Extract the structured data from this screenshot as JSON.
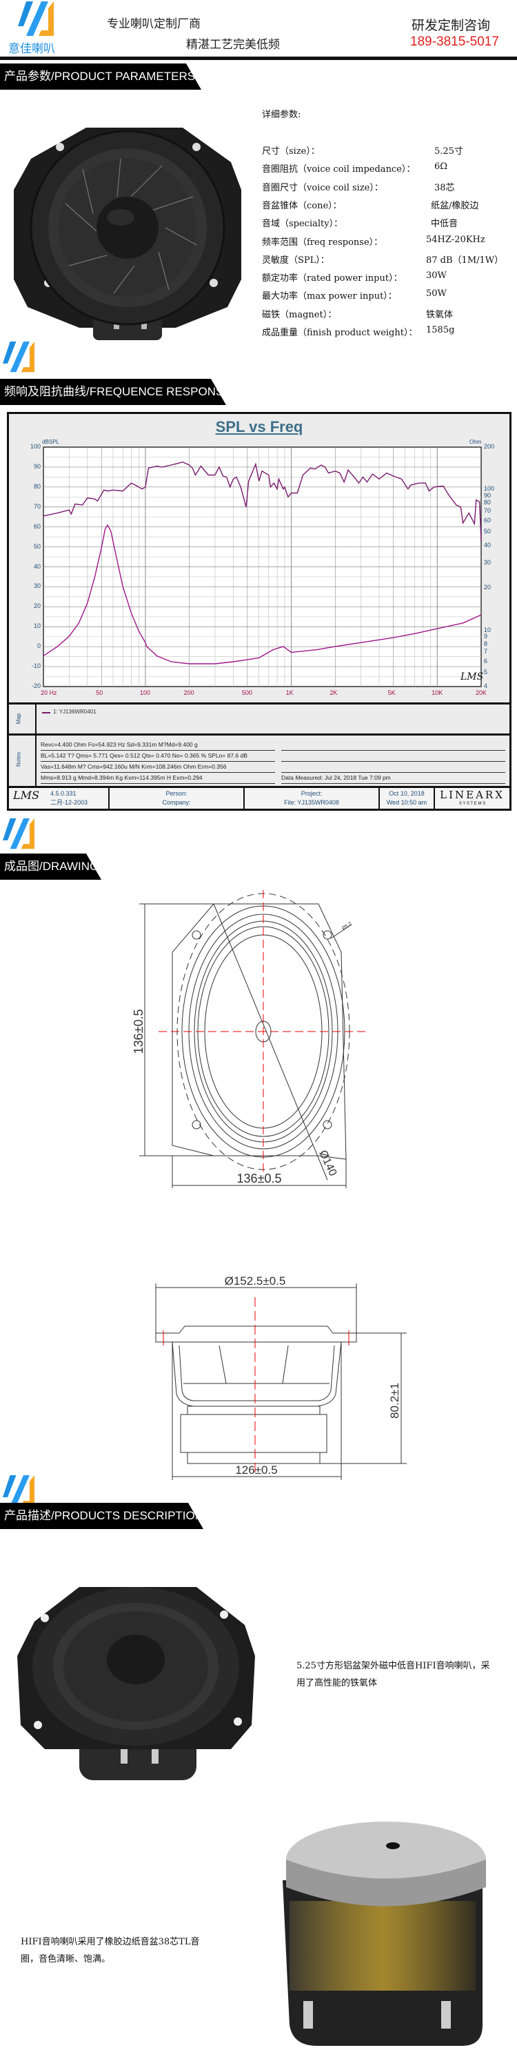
{
  "header": {
    "brand": "意佳喇叭",
    "slogan_1": "专业喇叭定制厂商",
    "slogan_2": "精湛工艺完美低频",
    "contact_title": "研发定制咨询",
    "phone": "189-3815-5017",
    "colors": {
      "phone": "#e0201c",
      "logo_blue": "#1e8fe0",
      "logo_orange": "#f5a623"
    }
  },
  "sections": {
    "parameters": "产品参数/PRODUCT  PARAMETERS",
    "frequency": "频响及阻抗曲线/FREQUENCE RESPONSE",
    "drawing": "成品图/DRAWING",
    "description": "产品描述/PRODUCTS DESCRIPTION"
  },
  "parameters": {
    "heading": "详细参数:",
    "rows": [
      {
        "label": "尺寸（size）：",
        "value": "5.25寸"
      },
      {
        "label": "音圈阻抗（voice coil impedance）：",
        "value": "6Ω"
      },
      {
        "label": "音圈尺寸（voice coil size）：",
        "value": "38芯"
      },
      {
        "label": "音盆锥体（cone）：",
        "value": "纸盆/橡胶边"
      },
      {
        "label": "音域（specialty）：",
        "value": "中低音"
      },
      {
        "label": "频率范围（freq response）：",
        "value": "54HZ-20KHz"
      },
      {
        "label": "灵敏度（SPL）：",
        "value": "87 dB（1M/1W）"
      },
      {
        "label": "额定功率（rated power input）：",
        "value": "30W"
      },
      {
        "label": "最大功率（max power input）：",
        "value": "50W"
      },
      {
        "label": "磁铁（magnet）：",
        "value": "铁氧体"
      },
      {
        "label": "成品重量（finish product weight）：",
        "value": "1585g"
      }
    ]
  },
  "chart_data": {
    "type": "line",
    "title": "SPL vs Freq",
    "xlabel": "",
    "ylabel": "dBSPL",
    "ylabel_right": "Ohm",
    "x_scale": "log",
    "xlim": [
      20,
      20000
    ],
    "ylim": [
      -20,
      100
    ],
    "ylim_right": [
      4,
      200
    ],
    "y_right_scale": "log",
    "grid": true,
    "x_ticks": [
      "20  Hz",
      "50",
      "100",
      "200",
      "500",
      "1K",
      "2K",
      "5K",
      "10K",
      "20K"
    ],
    "y_ticks": [
      "100",
      "90",
      "80",
      "70",
      "60",
      "50",
      "40",
      "30",
      "20",
      "10",
      "0",
      "-10",
      "-20"
    ],
    "y_right_ticks": [
      "200",
      "100",
      "90",
      "80",
      "70",
      "60",
      "50",
      "40",
      "30",
      "20",
      "10",
      "9",
      "8",
      "7",
      "6",
      "5",
      "4"
    ],
    "series": [
      {
        "unit": "dBSPL",
        "color": "#7a1a6e",
        "points": [
          [
            20,
            65.5
          ],
          [
            25,
            67
          ],
          [
            30,
            68.5
          ],
          [
            31,
            66.5
          ],
          [
            33,
            71.5
          ],
          [
            37,
            71
          ],
          [
            40,
            74.5
          ],
          [
            45,
            74
          ],
          [
            47,
            73
          ],
          [
            52,
            78.5
          ],
          [
            55,
            78
          ],
          [
            60,
            78.5
          ],
          [
            70,
            78
          ],
          [
            80,
            82
          ],
          [
            85,
            81
          ],
          [
            95,
            79
          ],
          [
            100,
            80
          ],
          [
            105,
            89.5
          ],
          [
            120,
            90.5
          ],
          [
            130,
            90
          ],
          [
            150,
            91
          ],
          [
            180,
            92.5
          ],
          [
            200,
            91
          ],
          [
            210,
            89.5
          ],
          [
            220,
            86
          ],
          [
            240,
            90.5
          ],
          [
            270,
            86
          ],
          [
            300,
            86
          ],
          [
            320,
            90
          ],
          [
            340,
            85.5
          ],
          [
            360,
            85
          ],
          [
            380,
            80
          ],
          [
            400,
            84
          ],
          [
            420,
            85
          ],
          [
            450,
            80
          ],
          [
            490,
            70
          ],
          [
            510,
            83
          ],
          [
            570,
            91.5
          ],
          [
            600,
            83
          ],
          [
            630,
            88
          ],
          [
            700,
            86
          ],
          [
            720,
            80
          ],
          [
            760,
            82
          ],
          [
            800,
            79
          ],
          [
            820,
            84
          ],
          [
            880,
            79
          ],
          [
            900,
            80
          ],
          [
            950,
            75
          ],
          [
            1000,
            77
          ],
          [
            1100,
            77
          ],
          [
            1200,
            86
          ],
          [
            1350,
            89.5
          ],
          [
            1450,
            89
          ],
          [
            1600,
            91
          ],
          [
            1700,
            90
          ],
          [
            1800,
            87
          ],
          [
            2000,
            88
          ],
          [
            2150,
            87
          ],
          [
            2300,
            82.5
          ],
          [
            2450,
            88.5
          ],
          [
            2700,
            85
          ],
          [
            2900,
            82
          ],
          [
            3100,
            85
          ],
          [
            3300,
            82.5
          ],
          [
            3600,
            86.5
          ],
          [
            4000,
            84
          ],
          [
            4500,
            87
          ],
          [
            5000,
            85.5
          ],
          [
            5700,
            84
          ],
          [
            6300,
            79
          ],
          [
            6600,
            81
          ],
          [
            7500,
            82
          ],
          [
            8300,
            82
          ],
          [
            8800,
            78
          ],
          [
            9500,
            80
          ],
          [
            11000,
            80.5
          ],
          [
            12000,
            76
          ],
          [
            13500,
            71
          ],
          [
            14500,
            70
          ],
          [
            15000,
            62
          ],
          [
            16500,
            67
          ],
          [
            18000,
            61.5
          ],
          [
            18500,
            73.5
          ],
          [
            19500,
            72.5
          ],
          [
            20000,
            53
          ]
        ]
      },
      {
        "unit": "Ohm",
        "color": "#a0158a",
        "points": [
          [
            20,
            6.6
          ],
          [
            25,
            7.7
          ],
          [
            30,
            9.1
          ],
          [
            35,
            11.3
          ],
          [
            40,
            15.6
          ],
          [
            45,
            24
          ],
          [
            50,
            38.7
          ],
          [
            53,
            52.6
          ],
          [
            55,
            56
          ],
          [
            58,
            50.5
          ],
          [
            62,
            36.5
          ],
          [
            70,
            20.5
          ],
          [
            80,
            13.3
          ],
          [
            90,
            9.9
          ],
          [
            100,
            8.2
          ],
          [
            102,
            7.7
          ],
          [
            120,
            6.6
          ],
          [
            150,
            6.0
          ],
          [
            200,
            5.8
          ],
          [
            250,
            5.8
          ],
          [
            300,
            5.8
          ],
          [
            400,
            6.0
          ],
          [
            500,
            6.2
          ],
          [
            600,
            6.4
          ],
          [
            750,
            7.3
          ],
          [
            880,
            7.7
          ],
          [
            1000,
            7.0
          ],
          [
            1500,
            7.3
          ],
          [
            2000,
            7.7
          ],
          [
            3000,
            8.2
          ],
          [
            5000,
            8.9
          ],
          [
            7000,
            9.5
          ],
          [
            10000,
            10.3
          ],
          [
            15000,
            11.3
          ],
          [
            20000,
            12.9
          ]
        ]
      }
    ],
    "map_label": "Map",
    "legend": "1: YJ136WR0401",
    "notes_label": "Notes",
    "notes": [
      "Revc=4.400 Ohm  Fo=54.923 Hz  Sd=9.331m M?Md=9.400 g",
      "BL=5.142 T?  Qms= 5.771  Qes= 0.512  Qts= 0.470  No= 0.365 %  SPLo= 87.6 dB",
      "Vas=11.648m M? Cms=942.160u M/N  Krm=108.246m Ohm  Erm=0.356",
      "Mms=8.913 g  Mmd=8.394m Kg  Kxm=114.395m H  Exm=0.294"
    ],
    "data_measured": "Data Measured: Jul 24, 2018  Tue  7:09 pm",
    "footer": {
      "lms_logo": "LMS",
      "version": "4.5.0.331",
      "version_date": "二月-12-2003",
      "person": "Person:",
      "company": "Company:",
      "project": "Project:",
      "file": "File: YJ135WR0408",
      "date": "Oct 10, 2018",
      "time": "Wed 10:50 am",
      "brand": "LINEARX",
      "brand_sub": "S Y S T E M S"
    }
  },
  "drawing": {
    "front_height": "136±0.5",
    "front_width": "136±0.5",
    "diameter": "Ø140",
    "hole": "Ø5.2",
    "side_diameter": "Ø152.5±0.5",
    "side_height": "80.2±1",
    "side_base": "126±0.5"
  },
  "description": {
    "text_1": [
      "5.25寸方形铝盆架外磁中低音HIFI音响喇叭，采",
      "用了高性能的铁氧体"
    ],
    "text_2": [
      "HIFI音响喇叭采用了橡胶边纸音盆38芯TL音",
      "圈，音色清晰、饱满。"
    ]
  }
}
